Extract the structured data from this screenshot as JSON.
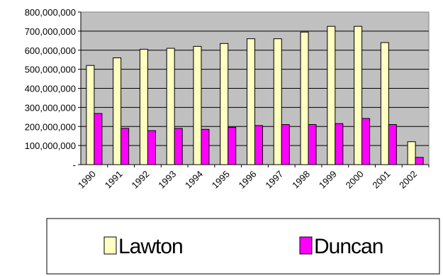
{
  "chart_data": {
    "type": "bar",
    "categories": [
      "1990",
      "1991",
      "1992",
      "1993",
      "1994",
      "1995",
      "1996",
      "1997",
      "1998",
      "1999",
      "2000",
      "2001",
      "2002"
    ],
    "series": [
      {
        "name": "Lawton",
        "values": [
          520000000,
          560000000,
          605000000,
          610000000,
          620000000,
          635000000,
          660000000,
          660000000,
          695000000,
          725000000,
          725000000,
          640000000,
          120000000
        ]
      },
      {
        "name": "Duncan",
        "values": [
          268000000,
          190000000,
          178000000,
          190000000,
          185000000,
          195000000,
          205000000,
          210000000,
          210000000,
          215000000,
          242000000,
          210000000,
          38000000
        ]
      }
    ],
    "ylim": [
      0,
      800000000
    ],
    "yticks": [
      0,
      100000000,
      200000000,
      300000000,
      400000000,
      500000000,
      600000000,
      700000000,
      800000000
    ],
    "ytick_labels": [
      "-",
      "100,000,000",
      "200,000,000",
      "300,000,000",
      "400,000,000",
      "500,000,000",
      "600,000,000",
      "700,000,000",
      "800,000,000"
    ],
    "grid": true,
    "legend_position": "bottom",
    "colors": {
      "Lawton": "#ffffc0",
      "Duncan": "#ff00ff",
      "plot_background": "#c0c0c0"
    }
  }
}
